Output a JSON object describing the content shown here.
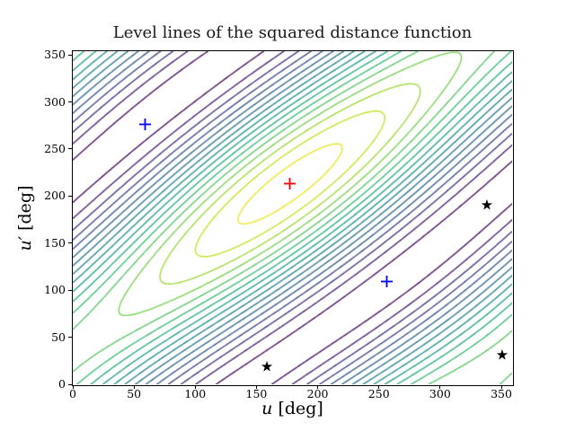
{
  "chart_data": {
    "type": "contour",
    "title": "Level lines of the squared distance function",
    "xlabel": "u [deg]",
    "ylabel": "u′ [deg]",
    "xlabel_var": "u",
    "ylabel_var": "u′",
    "axis_unit": "[deg]",
    "xlim": [
      0,
      358.8
    ],
    "ylim": [
      0,
      354
    ],
    "xticks": [
      0,
      50,
      100,
      150,
      200,
      250,
      300,
      350
    ],
    "yticks": [
      0,
      50,
      100,
      150,
      200,
      250,
      300,
      350
    ],
    "grid": false,
    "legend": "none",
    "colormap": "viridis",
    "viridis_anchors": [
      "#440154",
      "#482475",
      "#414487",
      "#355f8d",
      "#2a788e",
      "#21918c",
      "#22a884",
      "#44bf70",
      "#7ad151",
      "#bddf26",
      "#fde725"
    ],
    "levels": [
      -7,
      -6,
      -5,
      -4,
      -3,
      -2,
      -1,
      0,
      1,
      2,
      3,
      4,
      5,
      6,
      7,
      8,
      9
    ],
    "field": {
      "description": "f(u,u') = a*(cos(u-u0)+cos(u'-v0)) + b*cos((u-u0)-(u'-v0)), angles in degrees, periodic 360; maximum at (u0,v0), diagonal elongated level ellipses",
      "u0": 177.5,
      "v0": 213,
      "a": 1,
      "b": 7.5
    },
    "markers": [
      {
        "shape": "plus",
        "color": "#ff0000",
        "x": 177.5,
        "y": 213
      },
      {
        "shape": "plus",
        "color": "#0000ff",
        "x": 58.7,
        "y": 276
      },
      {
        "shape": "plus",
        "color": "#0000ff",
        "x": 256.8,
        "y": 108.9
      },
      {
        "shape": "star",
        "color": "#000000",
        "x": 158.5,
        "y": 18.1
      },
      {
        "shape": "star",
        "color": "#000000",
        "x": 338.2,
        "y": 190.1
      },
      {
        "shape": "star",
        "color": "#000000",
        "x": 350.7,
        "y": 30.6
      }
    ]
  }
}
